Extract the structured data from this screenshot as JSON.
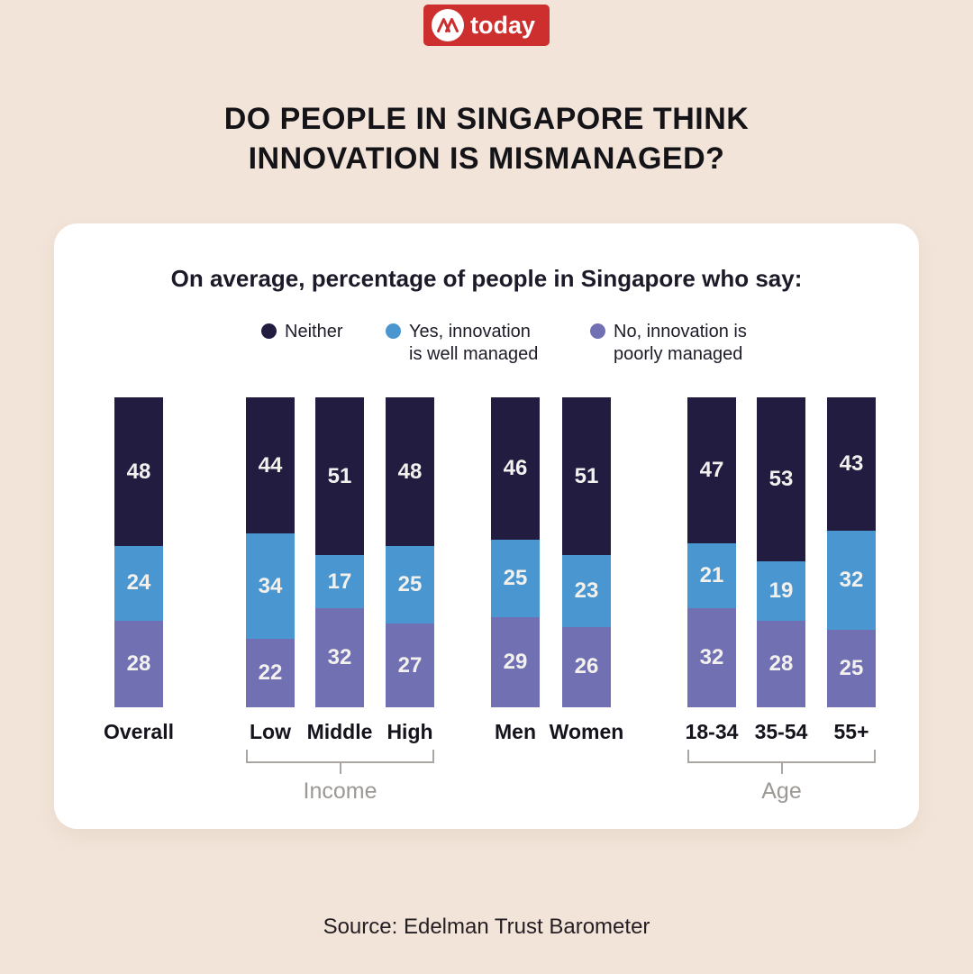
{
  "page": {
    "background_color": "#f2e4d8",
    "title_line1": "DO PEOPLE IN SINGAPORE THINK",
    "title_line2": "INNOVATION IS MISMANAGED?",
    "source": "Source: Edelman Trust Barometer"
  },
  "logo": {
    "brand": "today",
    "background_color": "#cd2f2f",
    "monogram_icon": "mediacorp-m-icon"
  },
  "chart_data": {
    "type": "bar",
    "stacked": true,
    "orientation": "vertical",
    "title": "On average, percentage of people in Singapore who say:",
    "value_unit": "percent",
    "ylim": [
      0,
      100
    ],
    "grid": false,
    "legend_position": "top",
    "series": [
      {
        "name": "Neither",
        "color": "#211c40",
        "legend_lines": [
          "Neither"
        ]
      },
      {
        "name": "Yes, innovation is well managed",
        "color": "#4a96d0",
        "legend_lines": [
          "Yes, innovation",
          "is well managed"
        ]
      },
      {
        "name": "No, innovation is poorly managed",
        "color": "#7170b2",
        "legend_lines": [
          "No, innovation is",
          "poorly managed"
        ]
      }
    ],
    "groups": [
      {
        "name": "",
        "bars": [
          {
            "label": "Overall",
            "values": [
              48,
              24,
              28
            ]
          }
        ]
      },
      {
        "name": "Income",
        "bars": [
          {
            "label": "Low",
            "values": [
              44,
              34,
              22
            ]
          },
          {
            "label": "Middle",
            "values": [
              51,
              17,
              32
            ]
          },
          {
            "label": "High",
            "values": [
              48,
              25,
              27
            ]
          }
        ]
      },
      {
        "name": "",
        "bars": [
          {
            "label": "Men",
            "values": [
              46,
              25,
              29
            ]
          },
          {
            "label": "Women",
            "values": [
              51,
              23,
              26
            ]
          }
        ]
      },
      {
        "name": "Age",
        "bars": [
          {
            "label": "18-34",
            "values": [
              47,
              21,
              32
            ]
          },
          {
            "label": "35-54",
            "values": [
              53,
              19,
              28
            ]
          },
          {
            "label": "55+",
            "values": [
              43,
              32,
              25
            ]
          }
        ]
      }
    ]
  }
}
